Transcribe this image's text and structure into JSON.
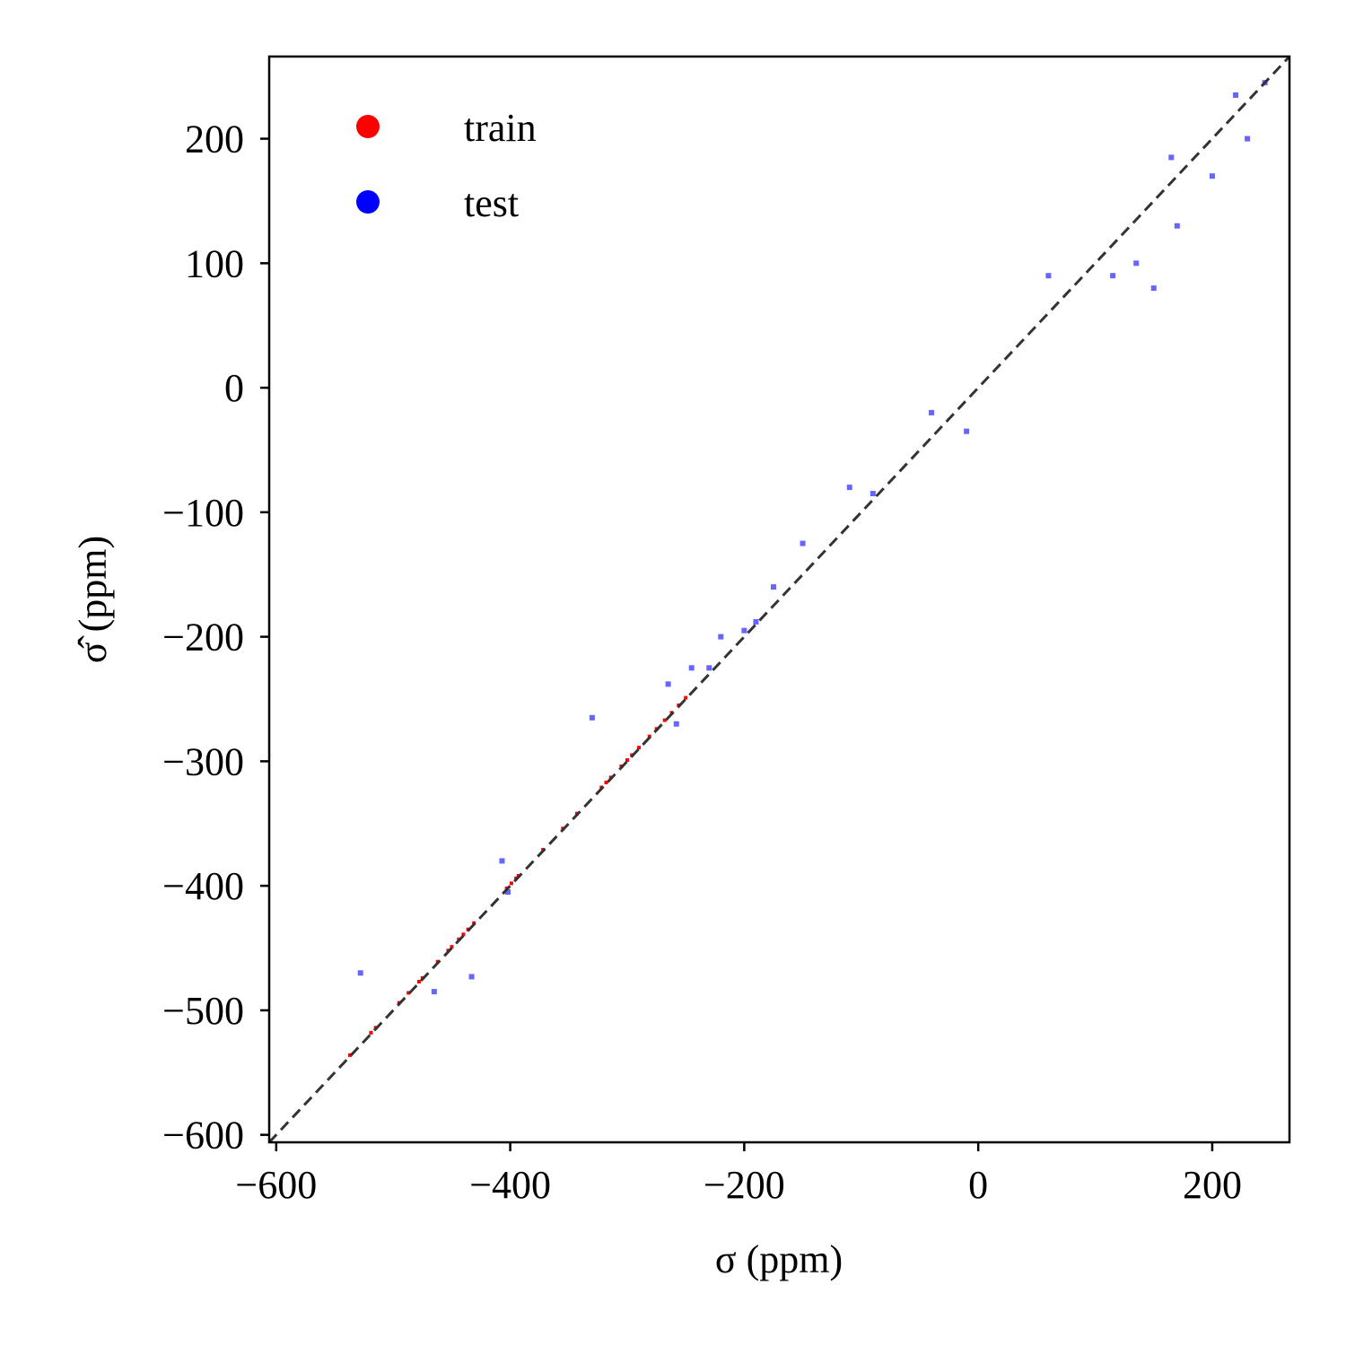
{
  "chart_data": {
    "type": "scatter",
    "title": "",
    "xlabel": "σ (ppm)",
    "ylabel": "σ̂ (ppm)",
    "xlim": [
      -606,
      266
    ],
    "ylim": [
      -606,
      266
    ],
    "x_ticks": [
      -600,
      -400,
      -200,
      0,
      200
    ],
    "y_ticks": [
      -600,
      -500,
      -400,
      -300,
      -200,
      -100,
      0,
      100,
      200
    ],
    "x_tick_labels": [
      "−600",
      "−400",
      "−200",
      "0",
      "200"
    ],
    "y_tick_labels": [
      "−600",
      "−500",
      "−400",
      "−300",
      "−200",
      "−100",
      "0",
      "100",
      "200"
    ],
    "grid": false,
    "legend_position": "top-left",
    "reference_line": {
      "style": "dashed",
      "color": "#333333",
      "from": [
        -606,
        -606
      ],
      "to": [
        266,
        266
      ]
    },
    "series": [
      {
        "name": "train",
        "color": "#ff0000",
        "points": [
          [
            -537,
            -536
          ],
          [
            -519,
            -518
          ],
          [
            -515,
            -514
          ],
          [
            -495,
            -494
          ],
          [
            -487,
            -486
          ],
          [
            -478,
            -477
          ],
          [
            -475,
            -474
          ],
          [
            -462,
            -461
          ],
          [
            -453,
            -452
          ],
          [
            -450,
            -449
          ],
          [
            -444,
            -443
          ],
          [
            -440,
            -439
          ],
          [
            -436,
            -435
          ],
          [
            -431,
            -430
          ],
          [
            -403,
            -402
          ],
          [
            -399,
            -398
          ],
          [
            -395,
            -394
          ],
          [
            -393,
            -392
          ],
          [
            -372,
            -371
          ],
          [
            -355,
            -354
          ],
          [
            -343,
            -342
          ],
          [
            -322,
            -321
          ],
          [
            -318,
            -317
          ],
          [
            -314,
            -313
          ],
          [
            -305,
            -304
          ],
          [
            -300,
            -299
          ],
          [
            -296,
            -295
          ],
          [
            -290,
            -289
          ],
          [
            -281,
            -280
          ],
          [
            -275,
            -274
          ],
          [
            -268,
            -267
          ],
          [
            -262,
            -261
          ],
          [
            -256,
            -255
          ],
          [
            -250,
            -249
          ]
        ]
      },
      {
        "name": "test",
        "color": "#0000ff",
        "points": [
          [
            -528,
            -470
          ],
          [
            -465,
            -485
          ],
          [
            -433,
            -473
          ],
          [
            -402,
            -405
          ],
          [
            -407,
            -380
          ],
          [
            -330,
            -265
          ],
          [
            -265,
            -238
          ],
          [
            -258,
            -270
          ],
          [
            -245,
            -225
          ],
          [
            -230,
            -225
          ],
          [
            -220,
            -200
          ],
          [
            -200,
            -195
          ],
          [
            -190,
            -188
          ],
          [
            -175,
            -160
          ],
          [
            -150,
            -125
          ],
          [
            -110,
            -80
          ],
          [
            -90,
            -85
          ],
          [
            -40,
            -20
          ],
          [
            -10,
            -35
          ],
          [
            60,
            90
          ],
          [
            115,
            90
          ],
          [
            135,
            100
          ],
          [
            150,
            80
          ],
          [
            170,
            130
          ],
          [
            200,
            170
          ],
          [
            230,
            200
          ],
          [
            245,
            245
          ],
          [
            165,
            185
          ],
          [
            220,
            235
          ]
        ]
      }
    ]
  }
}
